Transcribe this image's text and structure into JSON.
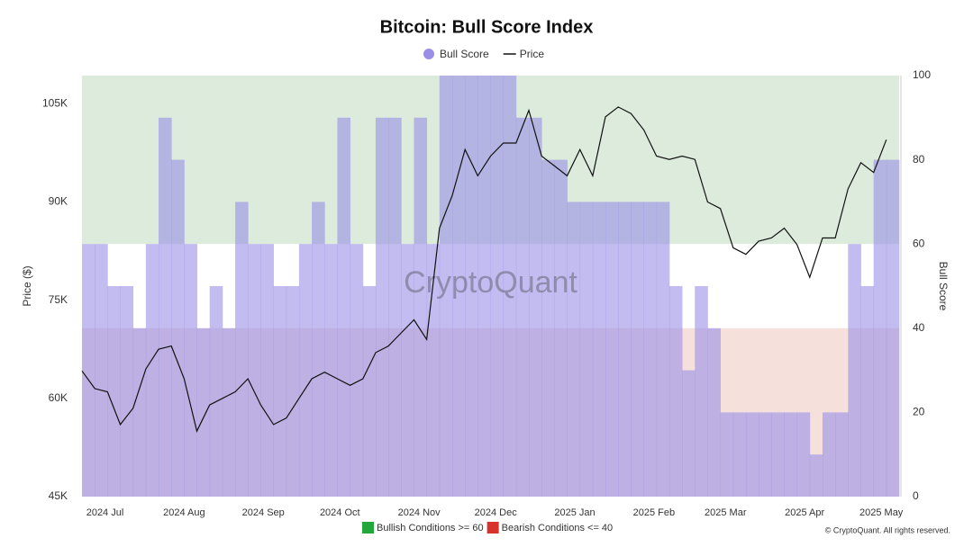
{
  "chart_data": {
    "type": "combo",
    "title": "Bitcoin: Bull Score Index",
    "y_label": "Price ($)",
    "y2_label": "Bull Score",
    "watermark": "CryptoQuant",
    "credit": "© CryptoQuant. All rights reserved.",
    "x": [
      "2024-06-22",
      "2024-06-27",
      "2024-07-02",
      "2024-07-07",
      "2024-07-12",
      "2024-07-17",
      "2024-07-22",
      "2024-07-27",
      "2024-08-01",
      "2024-08-06",
      "2024-08-11",
      "2024-08-16",
      "2024-08-21",
      "2024-08-26",
      "2024-08-31",
      "2024-09-05",
      "2024-09-10",
      "2024-09-15",
      "2024-09-20",
      "2024-09-25",
      "2024-09-30",
      "2024-10-05",
      "2024-10-10",
      "2024-10-15",
      "2024-10-20",
      "2024-10-25",
      "2024-10-30",
      "2024-11-04",
      "2024-11-09",
      "2024-11-14",
      "2024-11-19",
      "2024-11-24",
      "2024-11-29",
      "2024-12-04",
      "2024-12-09",
      "2024-12-14",
      "2024-12-19",
      "2024-12-24",
      "2024-12-29",
      "2025-01-03",
      "2025-01-08",
      "2025-01-13",
      "2025-01-18",
      "2025-01-23",
      "2025-01-28",
      "2025-02-02",
      "2025-02-07",
      "2025-02-12",
      "2025-02-17",
      "2025-02-22",
      "2025-02-27",
      "2025-03-04",
      "2025-03-09",
      "2025-03-14",
      "2025-03-19",
      "2025-03-24",
      "2025-03-29",
      "2025-04-03",
      "2025-04-08",
      "2025-04-13",
      "2025-04-18",
      "2025-04-23",
      "2025-04-28",
      "2025-05-03"
    ],
    "xlim": [
      "2024-06-22",
      "2025-05-08"
    ],
    "xticks": [
      {
        "value": "2024-07-01",
        "label": "2024 Jul"
      },
      {
        "value": "2024-08-01",
        "label": "2024 Aug"
      },
      {
        "value": "2024-09-01",
        "label": "2024 Sep"
      },
      {
        "value": "2024-10-01",
        "label": "2024 Oct"
      },
      {
        "value": "2024-11-01",
        "label": "2024 Nov"
      },
      {
        "value": "2024-12-01",
        "label": "2024 Dec"
      },
      {
        "value": "2025-01-01",
        "label": "2025 Jan"
      },
      {
        "value": "2025-02-01",
        "label": "2025 Feb"
      },
      {
        "value": "2025-03-01",
        "label": "2025 Mar"
      },
      {
        "value": "2025-04-01",
        "label": "2025 Apr"
      },
      {
        "value": "2025-05-01",
        "label": "2025 May"
      }
    ],
    "ylim": [
      45000,
      109300
    ],
    "yticks": [
      {
        "value": 45000,
        "label": "45K"
      },
      {
        "value": 60000,
        "label": "60K"
      },
      {
        "value": 75000,
        "label": "75K"
      },
      {
        "value": 90000,
        "label": "90K"
      },
      {
        "value": 105000,
        "label": "105K"
      }
    ],
    "y2lim": [
      0,
      100
    ],
    "y2ticks": [
      0,
      20,
      40,
      60,
      80,
      100
    ],
    "zones": [
      {
        "label": "Bullish Conditions >= 60",
        "from": 60,
        "to": 100,
        "color": "#dcebdc",
        "key_color": "#22a83a"
      },
      {
        "label": "Bearish Conditions <= 40",
        "from": 0,
        "to": 40,
        "color": "#f5e0dc",
        "key_color": "#d8322c"
      }
    ],
    "series": [
      {
        "name": "Bull Score",
        "type": "area",
        "axis": "y2",
        "color": "#9a8fe6",
        "values": [
          60,
          60,
          50,
          50,
          40,
          60,
          90,
          80,
          60,
          40,
          50,
          40,
          70,
          60,
          60,
          50,
          50,
          60,
          70,
          60,
          90,
          60,
          50,
          90,
          90,
          60,
          90,
          60,
          100,
          100,
          100,
          100,
          100,
          100,
          90,
          90,
          80,
          80,
          70,
          70,
          70,
          70,
          70,
          70,
          70,
          70,
          50,
          30,
          50,
          40,
          20,
          20,
          20,
          20,
          20,
          20,
          20,
          10,
          20,
          20,
          60,
          50,
          80,
          80
        ]
      },
      {
        "name": "Price",
        "type": "line",
        "color": "#111111",
        "values": [
          64200,
          61500,
          61000,
          56000,
          58500,
          64500,
          67500,
          68000,
          63000,
          55000,
          59000,
          60000,
          61000,
          63000,
          59000,
          56000,
          57000,
          60000,
          63000,
          64000,
          63000,
          62000,
          63000,
          67000,
          68000,
          70000,
          72000,
          69000,
          86000,
          91000,
          98000,
          94000,
          97000,
          99000,
          99000,
          104000,
          97000,
          95500,
          94000,
          98000,
          94000,
          103000,
          104500,
          103500,
          101000,
          97000,
          96500,
          97000,
          96500,
          90000,
          89000,
          83000,
          82000,
          84000,
          84500,
          86000,
          83500,
          78500,
          84500,
          84500,
          92000,
          96000,
          94500,
          99500
        ]
      }
    ]
  }
}
